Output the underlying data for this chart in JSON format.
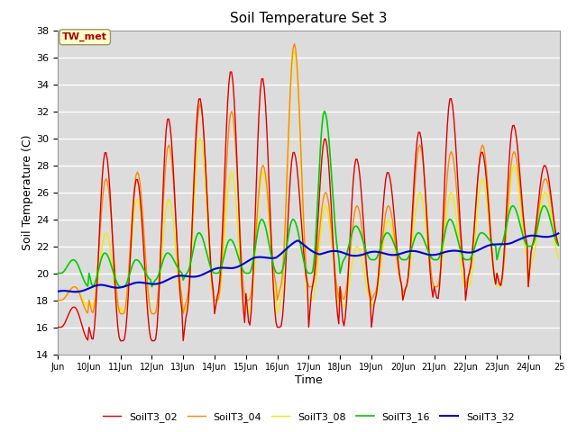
{
  "title": "Soil Temperature Set 3",
  "xlabel": "Time",
  "ylabel": "Soil Temperature (C)",
  "ylim": [
    14,
    38
  ],
  "yticks": [
    14,
    16,
    18,
    20,
    22,
    24,
    26,
    28,
    30,
    32,
    34,
    36,
    38
  ],
  "bg_color": "#dcdcdc",
  "annotation": "TW_met",
  "annotation_color": "#aa0000",
  "annotation_bg": "#ffffcc",
  "series_colors": {
    "SoilT3_02": "#dd0000",
    "SoilT3_04": "#ff8800",
    "SoilT3_08": "#eeee00",
    "SoilT3_16": "#00cc00",
    "SoilT3_32": "#0000cc"
  },
  "x_start": 9,
  "x_end": 25,
  "xtick_labels": [
    "Jun",
    "10Jun",
    "11Jun",
    "12Jun",
    "13Jun",
    "14Jun",
    "15Jun",
    "16Jun",
    "17Jun",
    "18Jun",
    "19Jun",
    "20Jun",
    "21Jun",
    "22Jun",
    "23Jun",
    "24Jun",
    "25"
  ],
  "xtick_positions": [
    9,
    10,
    11,
    12,
    13,
    14,
    15,
    16,
    17,
    18,
    19,
    20,
    21,
    22,
    23,
    24,
    25
  ]
}
